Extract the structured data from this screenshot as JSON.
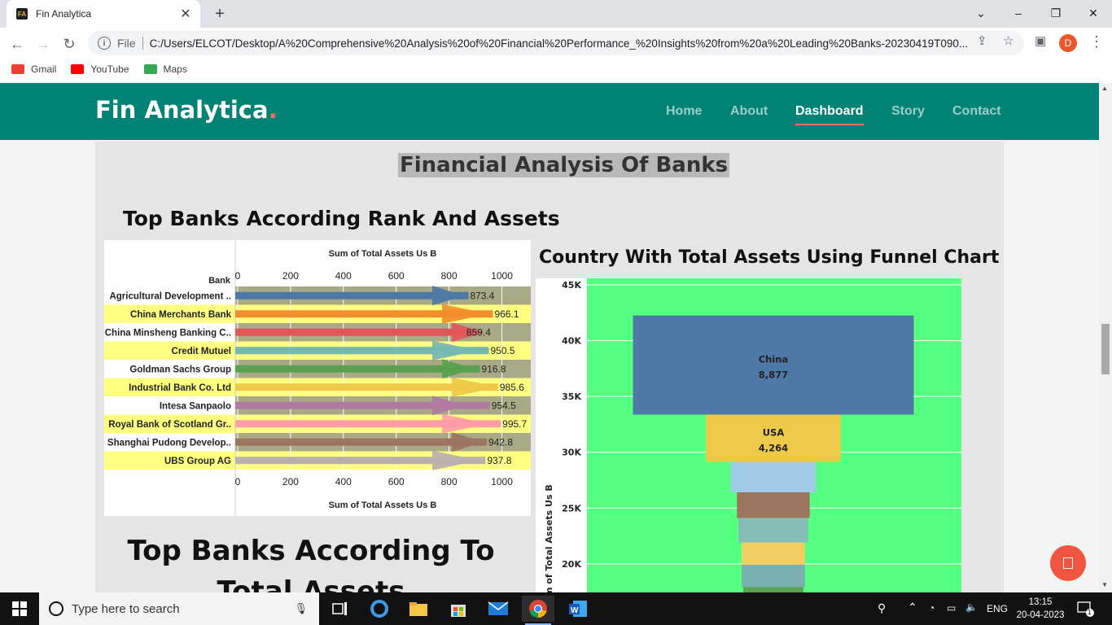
{
  "browser": {
    "tab_title": "Fin Analytica",
    "scheme_label": "File",
    "url": "C:/Users/ELCOT/Desktop/A%20Comprehensive%20Analysis%20of%20Financial%20Performance_%20Insights%20from%20a%20Leading%20Banks-20230419T090...",
    "profile_initial": "D",
    "bookmarks": [
      {
        "label": "Gmail",
        "color": "#ea4335"
      },
      {
        "label": "YouTube",
        "color": "#ff0000"
      },
      {
        "label": "Maps",
        "color": "#34a853"
      }
    ]
  },
  "site": {
    "logo": "Fin Analytica",
    "logo_dot": ".",
    "nav": [
      {
        "label": "Home"
      },
      {
        "label": "About"
      },
      {
        "label": "Dashboard",
        "active": true
      },
      {
        "label": "Story"
      },
      {
        "label": "Contact"
      }
    ],
    "brand_color": "#008374",
    "accent_color": "#f96f5d"
  },
  "page": {
    "title": "Financial Analysis Of Banks",
    "section1_title": "Top Banks According Rank And Assets",
    "section2_title": "Country With Total Assets Using Funnel Chart",
    "section3_title": "Top Banks According To Total Assets"
  },
  "chart_data": [
    {
      "type": "bar",
      "xlabel": "Sum of Total Assets Us B",
      "row_header": "Bank",
      "xlim": [
        0,
        1100
      ],
      "xticks": [
        0,
        200,
        400,
        600,
        800,
        1000
      ],
      "categories": [
        "Agricultural Development ..",
        "China Merchants Bank",
        "China Minsheng Banking C..",
        "Credit Mutuel",
        "Goldman Sachs Group",
        "Industrial Bank Co. Ltd",
        "Intesa Sanpaolo",
        "Royal Bank of Scotland Gr..",
        "Shanghai Pudong Develop..",
        "UBS Group AG"
      ],
      "values": [
        873.4,
        966.1,
        859.4,
        950.5,
        916.8,
        985.6,
        954.5,
        995.7,
        942.8,
        937.8
      ],
      "value_labels": [
        "873.4",
        "966.1",
        "859.4",
        "950.5",
        "916.8",
        "985.6",
        "954.5",
        "995.7",
        "942.8",
        "937.8"
      ],
      "colors": [
        "#4e79a7",
        "#f28e2b",
        "#e15759",
        "#76b7b2",
        "#59a14f",
        "#edc948",
        "#b07aa1",
        "#ff9da7",
        "#9c755f",
        "#bab0ac"
      ],
      "row_bands": [
        "#ffffff",
        "#ffff80"
      ],
      "bar_area_bands": [
        "#a9a985",
        "#ffff80"
      ]
    },
    {
      "type": "funnel",
      "ylabel": "Sum of Total Assets Us B",
      "yticks": [
        "20K",
        "25K",
        "30K",
        "35K",
        "40K",
        "45K"
      ],
      "ylim": [
        17000,
        45000
      ],
      "background": "#55ff7f",
      "segments": [
        {
          "name": "China",
          "value": 8877,
          "label": "8,877",
          "color": "#4e79a7"
        },
        {
          "name": "USA",
          "value": 4264,
          "label": "4,264",
          "color": "#edc948"
        },
        {
          "name": "",
          "value": 2700,
          "color": "#a0cbe8"
        },
        {
          "name": "",
          "value": 2300,
          "color": "#9c755f"
        },
        {
          "name": "",
          "value": 2200,
          "color": "#86bcb6"
        },
        {
          "name": "",
          "value": 2000,
          "color": "#f1ce63"
        },
        {
          "name": "",
          "value": 2000,
          "color": "#79b0ae"
        },
        {
          "name": "",
          "value": 1900,
          "color": "#59a14f"
        }
      ]
    }
  ],
  "taskbar": {
    "search_placeholder": "Type here to search",
    "language": "ENG",
    "time": "13:15",
    "date": "20-04-2023",
    "notification_count": "1"
  }
}
